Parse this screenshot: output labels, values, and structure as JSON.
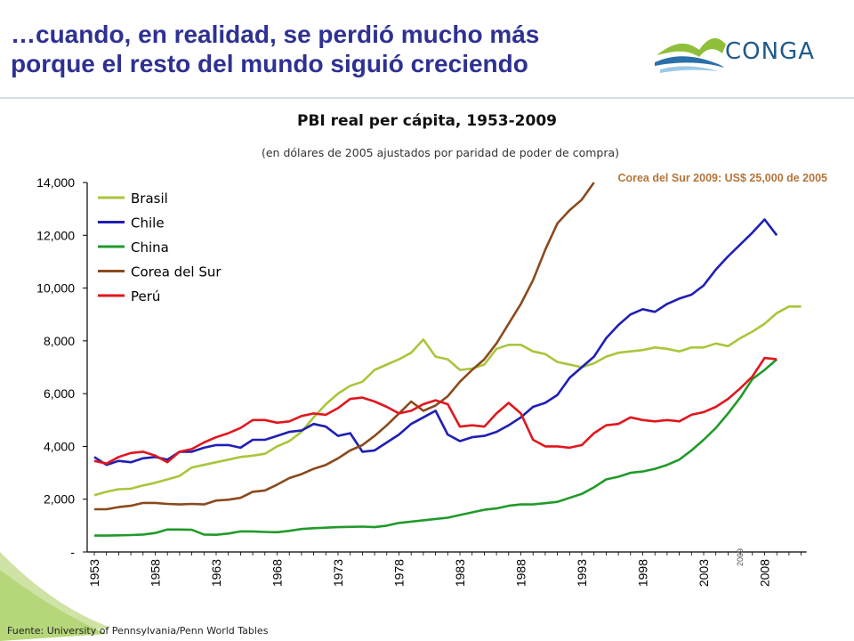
{
  "slide": {
    "title_line1": "…cuando, en realidad, se perdió mucho más",
    "title_line2": "porque el resto del mundo siguió creciendo",
    "logo_text": "CONGA",
    "source": "Fuente: University of Pennsylvania/Penn World Tables"
  },
  "colors": {
    "title": "#2e3192",
    "brasil": "#a9c63a",
    "chile": "#1f1fb4",
    "china": "#219a2a",
    "corea": "#8b4a1c",
    "peru": "#e0171e",
    "note": "#b5743a"
  },
  "chart_data": {
    "type": "line",
    "title": "PBI real per cápita, 1953-2009",
    "subtitle": "(en dólares de 2005 ajustados por paridad de poder de compra)",
    "annotation": "Corea del Sur 2009: US$ 25,000 de 2005",
    "marker_label": "2009",
    "ylim": [
      0,
      14000
    ],
    "yticks": [
      0,
      2000,
      4000,
      6000,
      8000,
      10000,
      12000,
      14000
    ],
    "ytick_labels": [
      "-",
      "2,000",
      "4,000",
      "6,000",
      "8,000",
      "10,000",
      "12,000",
      "14,000"
    ],
    "xticks": [
      1953,
      1958,
      1963,
      1968,
      1973,
      1978,
      1983,
      1988,
      1993,
      1998,
      2003,
      2008
    ],
    "legend_position": "top-left",
    "grid": false,
    "x_start": 1953,
    "series": [
      {
        "name": "Brasil",
        "color_key": "brasil",
        "values": [
          2150,
          2280,
          2380,
          2400,
          2520,
          2620,
          2750,
          2880,
          3200,
          3300,
          3400,
          3500,
          3600,
          3650,
          3720,
          4000,
          4200,
          4550,
          5100,
          5600,
          6000,
          6300,
          6450,
          6900,
          7100,
          7300,
          7550,
          8050,
          7400,
          7300,
          6900,
          6950,
          7100,
          7700,
          7850,
          7850,
          7600,
          7500,
          7200,
          7100,
          7000,
          7150,
          7400,
          7550,
          7600,
          7650,
          7750,
          7700,
          7600,
          7750,
          7750,
          7900,
          7800,
          8100,
          8350,
          8650,
          9050,
          9300,
          9300
        ]
      },
      {
        "name": "Chile",
        "color_key": "chile",
        "values": [
          3600,
          3300,
          3450,
          3400,
          3550,
          3600,
          3500,
          3800,
          3800,
          3950,
          4050,
          4050,
          3950,
          4250,
          4250,
          4400,
          4550,
          4600,
          4850,
          4750,
          4400,
          4500,
          3800,
          3850,
          4150,
          4450,
          4850,
          5100,
          5350,
          4450,
          4200,
          4350,
          4400,
          4550,
          4800,
          5100,
          5500,
          5650,
          5950,
          6600,
          7000,
          7400,
          8100,
          8600,
          9000,
          9200,
          9100,
          9400,
          9600,
          9750,
          10100,
          10700,
          11200,
          11650,
          12100,
          12600,
          12000
        ]
      },
      {
        "name": "China",
        "color_key": "china",
        "values": [
          620,
          620,
          630,
          640,
          660,
          720,
          850,
          850,
          840,
          660,
          650,
          700,
          780,
          780,
          760,
          750,
          800,
          870,
          900,
          920,
          940,
          950,
          960,
          940,
          1000,
          1100,
          1150,
          1200,
          1250,
          1300,
          1400,
          1500,
          1600,
          1650,
          1750,
          1800,
          1800,
          1850,
          1900,
          2050,
          2200,
          2450,
          2750,
          2850,
          3000,
          3050,
          3150,
          3300,
          3500,
          3850,
          4250,
          4700,
          5250,
          5850,
          6550,
          6900,
          7300
        ]
      },
      {
        "name": "Corea del Sur",
        "color_key": "corea",
        "values": [
          1620,
          1620,
          1700,
          1750,
          1860,
          1860,
          1820,
          1800,
          1820,
          1800,
          1950,
          1980,
          2050,
          2280,
          2330,
          2550,
          2800,
          2950,
          3150,
          3300,
          3550,
          3850,
          4050,
          4400,
          4800,
          5250,
          5700,
          5350,
          5550,
          5900,
          6450,
          6900,
          7300,
          7900,
          8650,
          9400,
          10300,
          11450,
          12450,
          12950,
          13350,
          14100
        ]
      },
      {
        "name": "Perú",
        "color_key": "peru",
        "values": [
          3450,
          3350,
          3600,
          3750,
          3800,
          3650,
          3400,
          3800,
          3900,
          4150,
          4350,
          4500,
          4700,
          5000,
          5000,
          4900,
          4950,
          5150,
          5250,
          5200,
          5450,
          5800,
          5850,
          5700,
          5500,
          5250,
          5350,
          5600,
          5750,
          5600,
          4750,
          4800,
          4750,
          5250,
          5650,
          5250,
          4250,
          4000,
          4000,
          3950,
          4050,
          4500,
          4800,
          4850,
          5100,
          5000,
          4950,
          5000,
          4950,
          5200,
          5300,
          5500,
          5800,
          6200,
          6650,
          7350,
          7300
        ]
      }
    ]
  }
}
